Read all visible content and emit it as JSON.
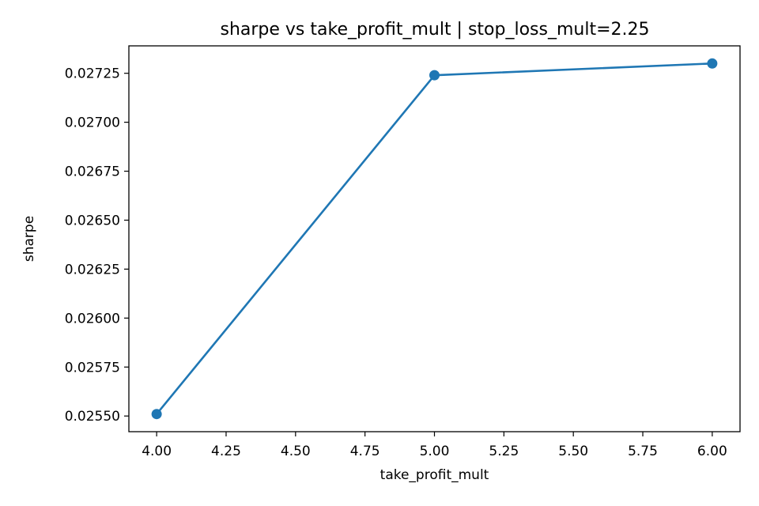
{
  "chart_data": {
    "type": "line",
    "title": "sharpe vs take_profit_mult | stop_loss_mult=2.25",
    "xlabel": "take_profit_mult",
    "ylabel": "sharpe",
    "x": [
      4.0,
      5.0,
      6.0
    ],
    "series": [
      {
        "values": [
          0.02551,
          0.02724,
          0.0273
        ],
        "color": "#1f77b4"
      }
    ],
    "xlim": [
      3.9,
      6.1
    ],
    "ylim": [
      0.02542,
      0.02739
    ],
    "xticks": [
      4.0,
      4.25,
      4.5,
      4.75,
      5.0,
      5.25,
      5.5,
      5.75,
      6.0
    ],
    "xtick_labels": [
      "4.00",
      "4.25",
      "4.50",
      "4.75",
      "5.00",
      "5.25",
      "5.50",
      "5.75",
      "6.00"
    ],
    "yticks": [
      0.0255,
      0.02575,
      0.026,
      0.02625,
      0.0265,
      0.02675,
      0.027,
      0.02725
    ],
    "ytick_labels": [
      "0.02550",
      "0.02575",
      "0.02600",
      "0.02625",
      "0.02650",
      "0.02675",
      "0.02700",
      "0.02725"
    ],
    "grid": false,
    "legend": "none"
  }
}
